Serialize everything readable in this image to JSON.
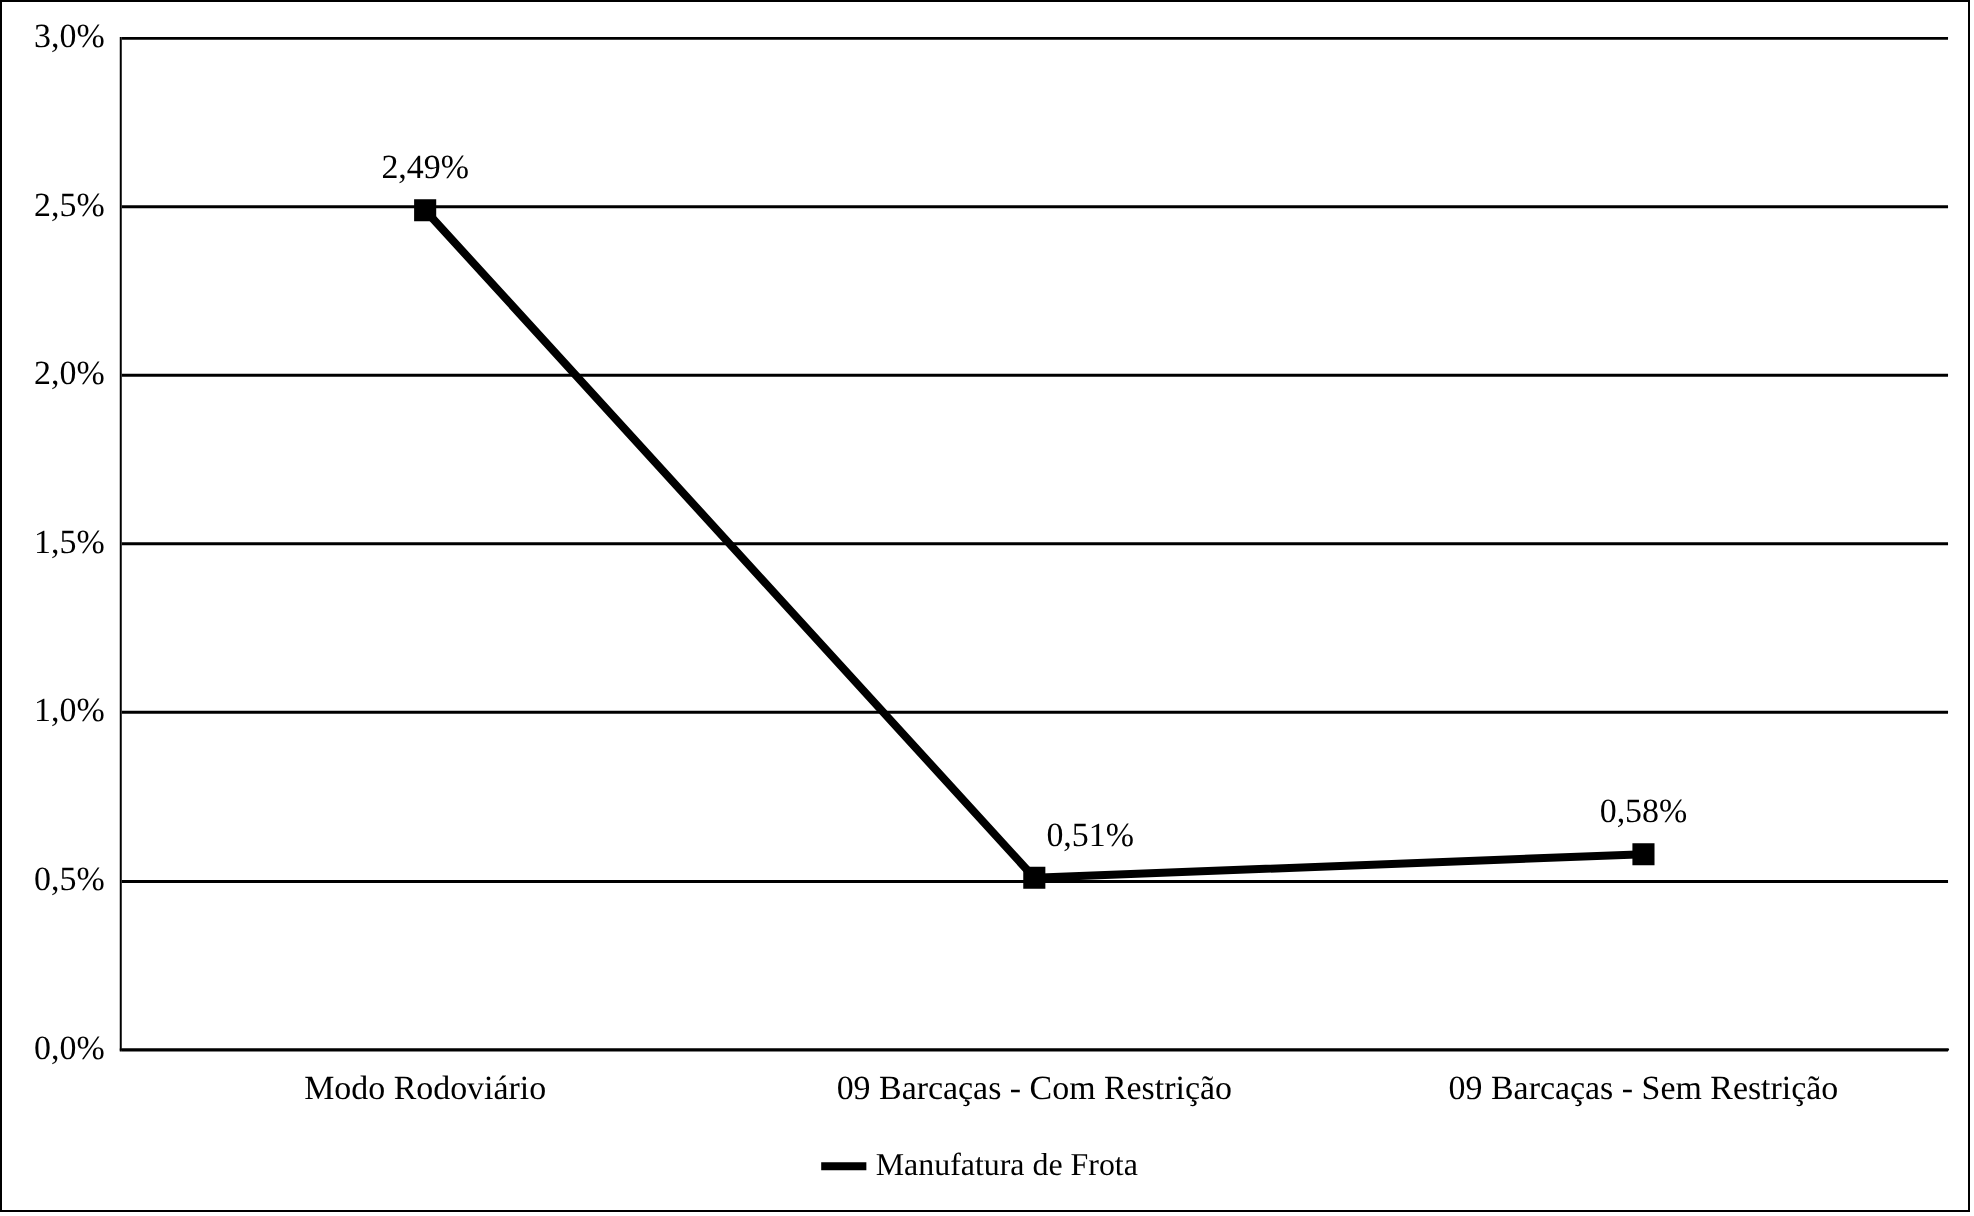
{
  "chart_data": {
    "type": "line",
    "categories": [
      "Modo Rodoviário",
      "09 Barcaças - Com Restrição",
      "09 Barcaças - Sem Restrição"
    ],
    "series": [
      {
        "name": "Manufatura de Frota",
        "color": "#000000",
        "values": [
          2.49,
          0.51,
          0.58
        ],
        "value_labels": [
          "2,49%",
          "0,51%",
          "0,58%"
        ]
      }
    ],
    "ylim": [
      0,
      3
    ],
    "yticks": [
      {
        "value": 0,
        "label": "0,0%"
      },
      {
        "value": 0.5,
        "label": "0,5%"
      },
      {
        "value": 1,
        "label": "1,0%"
      },
      {
        "value": 1.5,
        "label": "1,5%"
      },
      {
        "value": 2,
        "label": "2,0%"
      },
      {
        "value": 2.5,
        "label": "2,5%"
      },
      {
        "value": 3,
        "label": "3,0%"
      }
    ],
    "grid": "y",
    "legend": "bottom",
    "marker": "square",
    "line_style": "solid"
  }
}
